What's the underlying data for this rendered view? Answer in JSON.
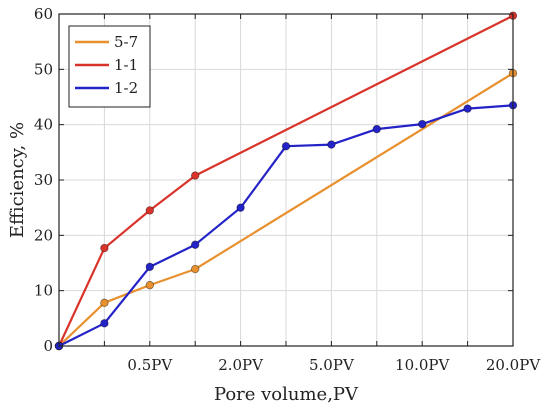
{
  "chart_data": {
    "type": "line",
    "xlabel": "Pore volume,PV",
    "ylabel": "Efficiency, %",
    "x_ticks": [
      "0.5PV",
      "2.0PV",
      "5.0PV",
      "10.0PV",
      "20.0PV"
    ],
    "x_tick_positions": [
      2,
      4,
      6,
      8,
      10
    ],
    "xlim": [
      0,
      10
    ],
    "ylim": [
      0,
      60
    ],
    "y_ticks": [
      0,
      10,
      20,
      30,
      40,
      50,
      60
    ],
    "grid": true,
    "legend_position": "top-left",
    "series": [
      {
        "name": "5-7",
        "color": "#e8902e",
        "points": [
          [
            0,
            0
          ],
          [
            1,
            7.8
          ],
          [
            2,
            11
          ],
          [
            3,
            13.9
          ],
          [
            10,
            49.3
          ]
        ]
      },
      {
        "name": "1-1",
        "color": "#d9342b",
        "points": [
          [
            0,
            0
          ],
          [
            1,
            17.7
          ],
          [
            2,
            24.5
          ],
          [
            3,
            30.8
          ],
          [
            10,
            59.7
          ]
        ]
      },
      {
        "name": "1-2",
        "color": "#2323c8",
        "points": [
          [
            0,
            0
          ],
          [
            1,
            4.1
          ],
          [
            2,
            14.3
          ],
          [
            3,
            18.3
          ],
          [
            4,
            25
          ],
          [
            5,
            36.1
          ],
          [
            6,
            36.4
          ],
          [
            7,
            39.2
          ],
          [
            8,
            40.1
          ],
          [
            9,
            42.9
          ],
          [
            10,
            43.5
          ]
        ]
      }
    ]
  }
}
